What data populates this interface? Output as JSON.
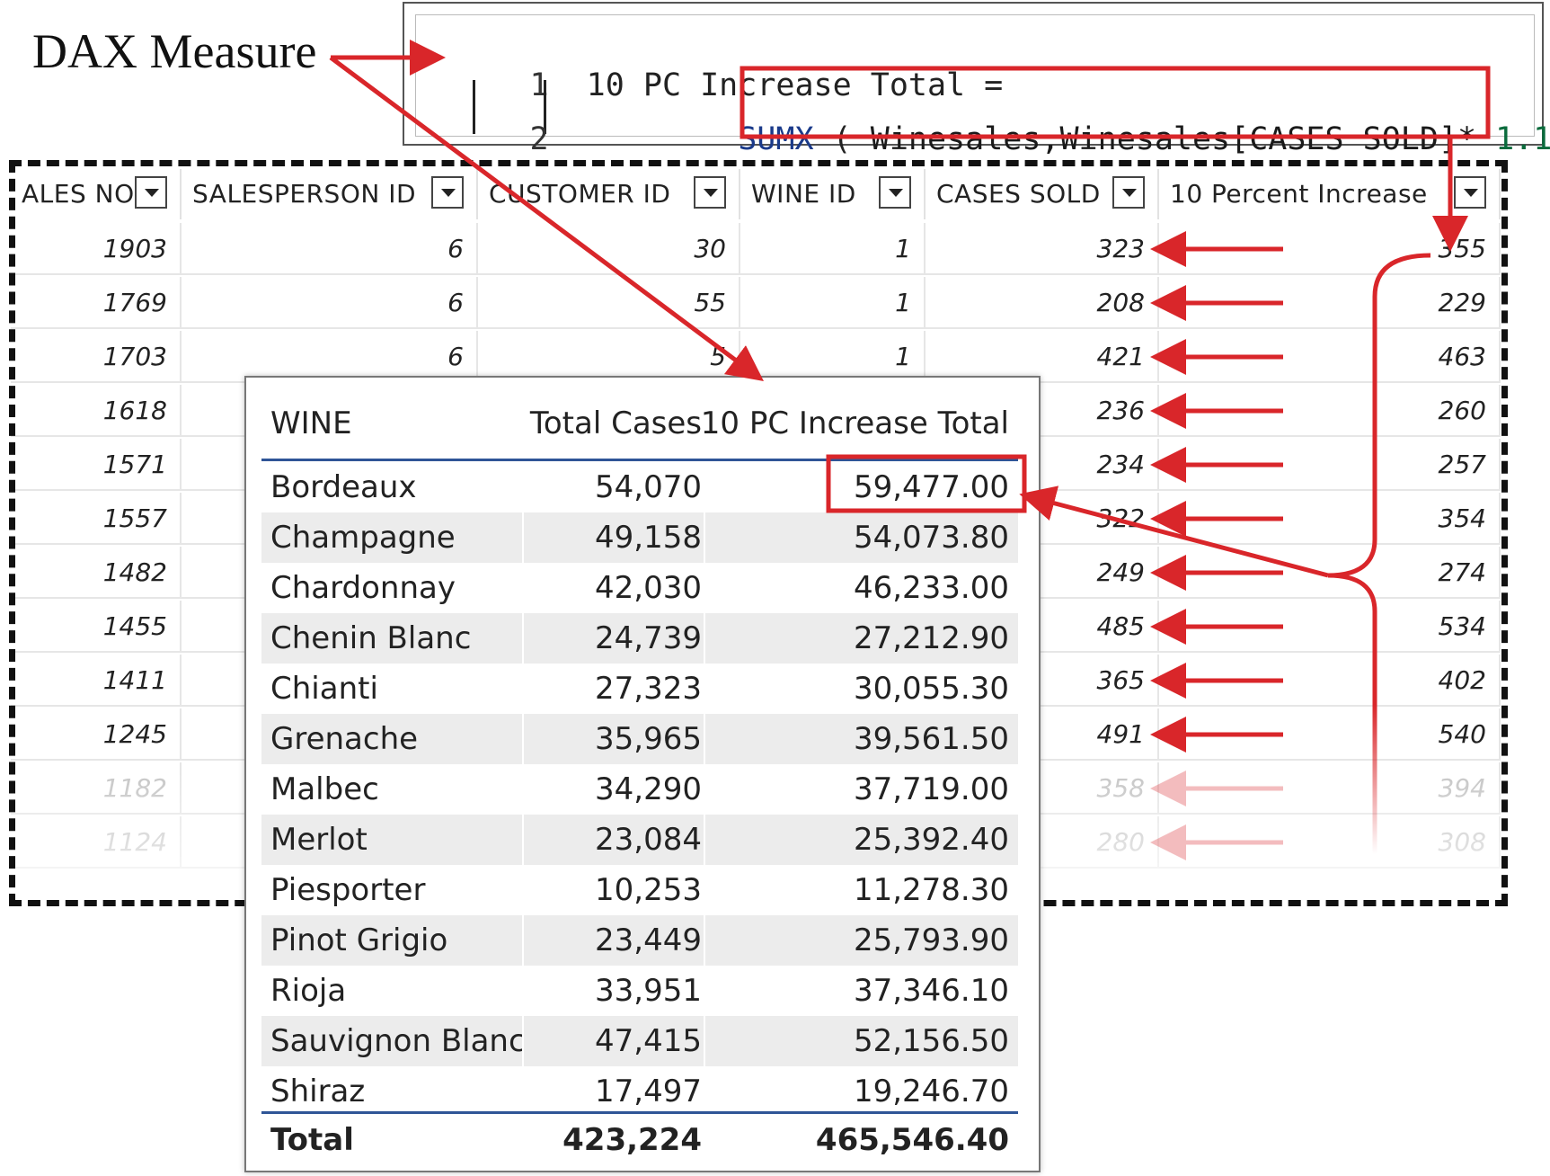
{
  "annotation": {
    "label": "DAX Measure"
  },
  "editor": {
    "line1": {
      "number": "1",
      "code": "10 PC Increase Total ="
    },
    "line2": {
      "number": "2",
      "fn": "SUMX",
      "open": "(",
      "ref": "Winesales,Winesales[CASES SOLD]*",
      "num": "1.1",
      "close": ")"
    }
  },
  "grid": {
    "headers": [
      "ALES NO",
      "SALESPERSON ID",
      "CUSTOMER ID",
      "WINE ID",
      "CASES SOLD",
      "10 Percent Increase"
    ],
    "rows": [
      [
        "1903",
        "6",
        "30",
        "1",
        "323",
        "355"
      ],
      [
        "1769",
        "6",
        "55",
        "1",
        "208",
        "229"
      ],
      [
        "1703",
        "6",
        "5",
        "1",
        "421",
        "463"
      ],
      [
        "1618",
        "",
        "",
        "",
        "236",
        "260"
      ],
      [
        "1571",
        "",
        "",
        "",
        "234",
        "257"
      ],
      [
        "1557",
        "",
        "",
        "",
        "322",
        "354"
      ],
      [
        "1482",
        "",
        "",
        "",
        "249",
        "274"
      ],
      [
        "1455",
        "",
        "",
        "",
        "485",
        "534"
      ],
      [
        "1411",
        "",
        "",
        "",
        "365",
        "402"
      ],
      [
        "1245",
        "",
        "",
        "",
        "491",
        "540"
      ],
      [
        "1182",
        "",
        "",
        "",
        "358",
        "394"
      ],
      [
        "1124",
        "",
        "",
        "",
        "280",
        "308"
      ]
    ]
  },
  "matrix": {
    "headers": [
      "WINE",
      "Total Cases",
      "10 PC Increase Total"
    ],
    "rows": [
      [
        "Bordeaux",
        "54,070",
        "59,477.00"
      ],
      [
        "Champagne",
        "49,158",
        "54,073.80"
      ],
      [
        "Chardonnay",
        "42,030",
        "46,233.00"
      ],
      [
        "Chenin Blanc",
        "24,739",
        "27,212.90"
      ],
      [
        "Chianti",
        "27,323",
        "30,055.30"
      ],
      [
        "Grenache",
        "35,965",
        "39,561.50"
      ],
      [
        "Malbec",
        "34,290",
        "37,719.00"
      ],
      [
        "Merlot",
        "23,084",
        "25,392.40"
      ],
      [
        "Piesporter",
        "10,253",
        "11,278.30"
      ],
      [
        "Pinot Grigio",
        "23,449",
        "25,793.90"
      ],
      [
        "Rioja",
        "33,951",
        "37,346.10"
      ],
      [
        "Sauvignon Blanc",
        "47,415",
        "52,156.50"
      ],
      [
        "Shiraz",
        "17,497",
        "19,246.70"
      ]
    ],
    "total": [
      "Total",
      "423,224",
      "465,546.40"
    ]
  },
  "colors": {
    "accent_red": "#d9262a",
    "header_line": "#2f5597"
  }
}
